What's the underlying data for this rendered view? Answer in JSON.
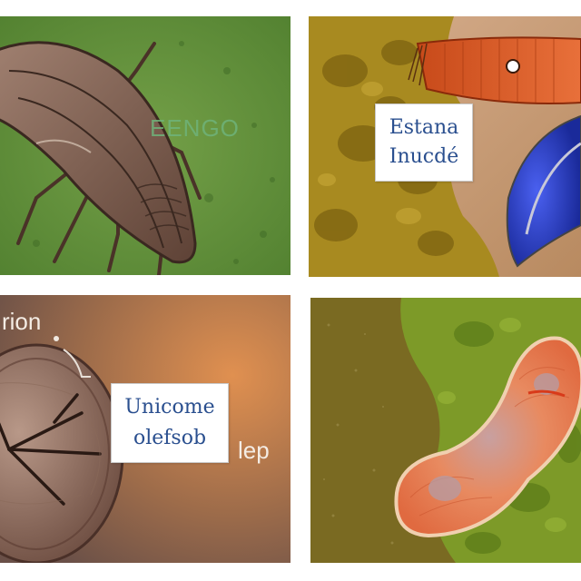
{
  "panels": {
    "top_left": {
      "overlay_text": "EENGO",
      "overlay_color": "#6fb37a",
      "background_color": "#5f8f3a",
      "subject_color": "#7a5a4a"
    },
    "top_right": {
      "caption_line_1": "Estana",
      "caption_line_2": "Inucdé",
      "background_color": "#c9a57a",
      "subject_color": "#e2622a",
      "accent_color": "#3a4fd6"
    },
    "bottom_left": {
      "overlay_text_top": "rion",
      "caption_line_1": "Unicome",
      "caption_line_2": "olefsob",
      "overlay_text_right": "lep",
      "background_color": "#b87a40",
      "subject_color": "#8a6a5a"
    },
    "bottom_right": {
      "background_color": "#8a7a2a",
      "subject_color": "#e8906a",
      "moss_color": "#7a9a2a"
    }
  }
}
